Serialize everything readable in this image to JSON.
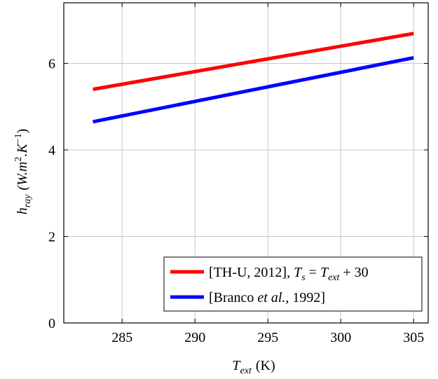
{
  "chart_data": {
    "type": "line",
    "xlabel_main": "T",
    "xlabel_sub": "ext",
    "xlabel_unit": "(K)",
    "ylabel_main": "h",
    "ylabel_sub": "ray",
    "ylabel_unit_pre": "(W.m",
    "ylabel_unit_sup1": "2",
    "ylabel_unit_mid": ".K",
    "ylabel_unit_sup2": "−1",
    "ylabel_unit_post": ")",
    "xlim": [
      281,
      306
    ],
    "ylim": [
      0,
      7.4
    ],
    "xticks": [
      285,
      290,
      295,
      300,
      305
    ],
    "yticks": [
      0,
      2,
      4,
      6
    ],
    "grid": true,
    "legend_position": "bottom-right",
    "series": [
      {
        "name": "[TH-U, 2012], T_s = T_ext + 30",
        "legend": {
          "prefix": "[TH-U, 2012], ",
          "t1": "T",
          "s1": "s",
          "eq": " = ",
          "t2": "T",
          "s2": "ext",
          "suffix": " + 30"
        },
        "color": "#ff0000",
        "x": [
          283,
          305
        ],
        "y": [
          5.4,
          6.69
        ]
      },
      {
        "name": "[Branco et al., 1992]",
        "legend": {
          "prefix": "[Branco ",
          "italic": "et al.",
          "suffix": ", 1992]"
        },
        "color": "#0000ff",
        "x": [
          283,
          305
        ],
        "y": [
          4.65,
          6.13
        ]
      }
    ]
  }
}
